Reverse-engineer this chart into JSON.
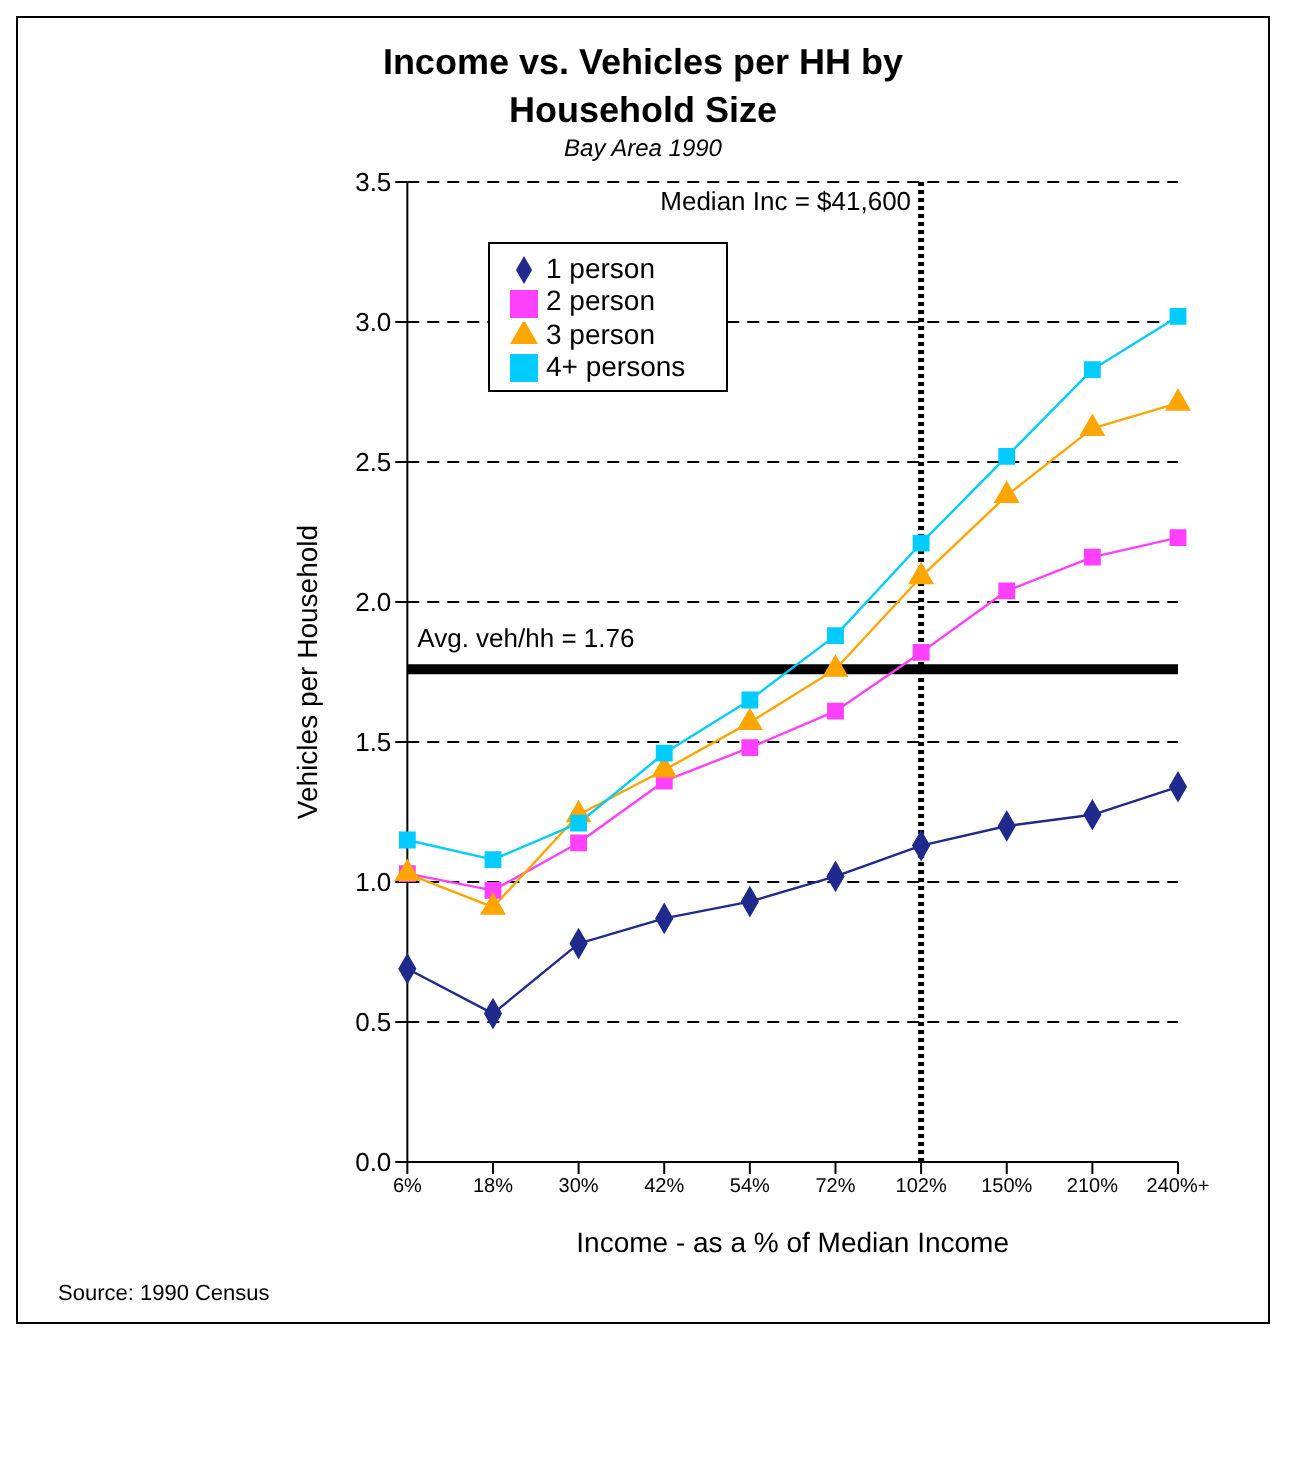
{
  "chart_data": {
    "type": "line",
    "title": "Income vs. Vehicles per HH by Household Size",
    "subtitle": "Bay Area 1990",
    "xlabel": "Income - as a % of Median Income",
    "ylabel": "Vehicles per Household",
    "annotations": [
      "Source: 1990 Census"
    ],
    "categories": [
      "6%",
      "18%",
      "30%",
      "42%",
      "54%",
      "72%",
      "102%",
      "150%",
      "210%",
      "240%+"
    ],
    "series": [
      {
        "name": "1 person",
        "color": "#1f2a8c",
        "marker": "diamond",
        "values": [
          0.69,
          0.53,
          0.78,
          0.87,
          0.93,
          1.02,
          1.13,
          1.2,
          1.24,
          1.34
        ]
      },
      {
        "name": "2 person",
        "color": "#ff40ff",
        "marker": "square",
        "values": [
          1.03,
          0.97,
          1.14,
          1.36,
          1.48,
          1.61,
          1.82,
          2.04,
          2.16,
          2.23
        ]
      },
      {
        "name": "3 person",
        "color": "#ffa500",
        "marker": "triangle",
        "values": [
          1.03,
          0.91,
          1.24,
          1.4,
          1.57,
          1.76,
          2.09,
          2.38,
          2.62,
          2.71
        ]
      },
      {
        "name": "4+ persons",
        "color": "#00ccff",
        "marker": "square",
        "values": [
          1.15,
          1.08,
          1.21,
          1.46,
          1.65,
          1.88,
          2.21,
          2.52,
          2.83,
          3.02
        ]
      }
    ],
    "ylim": [
      0,
      3.5
    ],
    "yticks": [
      {
        "value": 0,
        "label": "0.0"
      },
      0.5,
      {
        "value": 1,
        "label": "1.0"
      },
      1.5,
      {
        "value": 2,
        "label": "2.0"
      },
      2.5,
      {
        "value": 3,
        "label": "3.0"
      },
      3.5
    ],
    "ref_lines": [
      {
        "axis": "y",
        "value": 1.76,
        "label": "Avg. veh/hh = 1.76",
        "color": "#000000",
        "line_style": "solid"
      },
      {
        "axis": "x",
        "value": "102%",
        "label": "Median Inc = $41,600",
        "color": "#000000",
        "line_style": "dotted"
      }
    ],
    "grid": "y",
    "legend": "top left",
    "line_style": "solid"
  }
}
